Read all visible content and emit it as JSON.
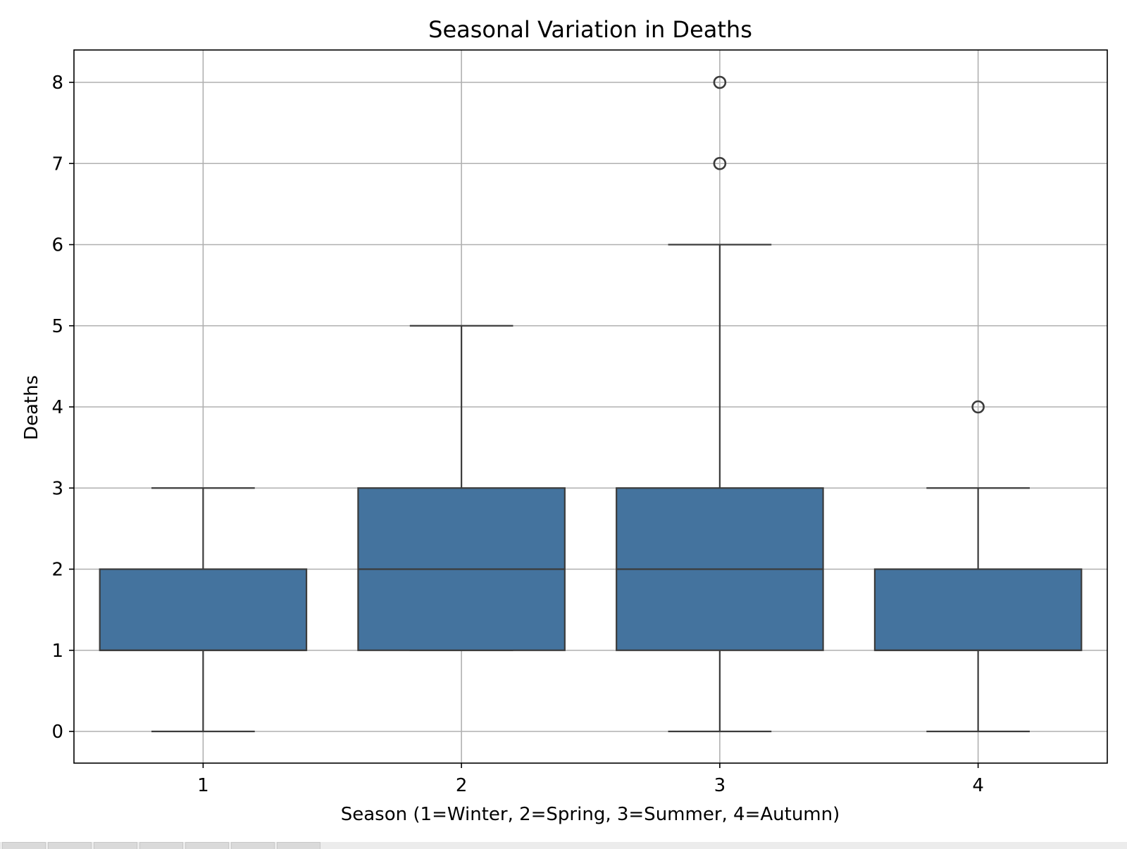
{
  "chart_data": {
    "type": "box",
    "title": "Seasonal Variation in Deaths",
    "xlabel": "Season (1=Winter, 2=Spring, 3=Summer, 4=Autumn)",
    "ylabel": "Deaths",
    "categories": [
      "1",
      "2",
      "3",
      "4"
    ],
    "ylim": [
      -0.4,
      8.4
    ],
    "yticks": [
      0,
      1,
      2,
      3,
      4,
      5,
      6,
      7,
      8
    ],
    "grid": true,
    "colors": {
      "box_fill": "#44739e",
      "line": "#3b3b3b",
      "grid": "#b0b0b0"
    },
    "boxes": [
      {
        "category": "1",
        "whisker_low": 0,
        "q1": 1,
        "median": 1,
        "q3": 2,
        "whisker_high": 3,
        "outliers": []
      },
      {
        "category": "2",
        "whisker_low": 1,
        "q1": 1,
        "median": 2,
        "q3": 3,
        "whisker_high": 5,
        "outliers": []
      },
      {
        "category": "3",
        "whisker_low": 0,
        "q1": 1,
        "median": 2,
        "q3": 3,
        "whisker_high": 6,
        "outliers": [
          7,
          8
        ]
      },
      {
        "category": "4",
        "whisker_low": 0,
        "q1": 1,
        "median": 1,
        "q3": 2,
        "whisker_high": 3,
        "outliers": [
          4
        ]
      }
    ]
  },
  "taskbar": {
    "tab_count": 7
  }
}
